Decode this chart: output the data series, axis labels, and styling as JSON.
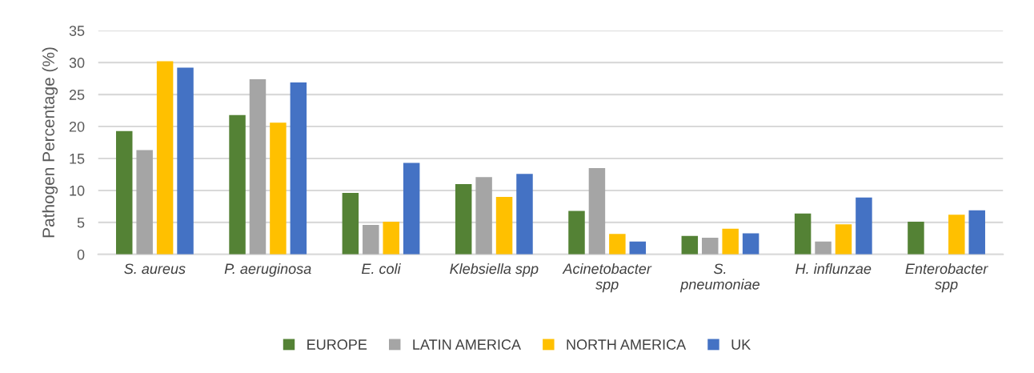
{
  "chart_data": {
    "type": "bar",
    "ylabel": "Pathogen Percentage (%)",
    "categories": [
      "S. aureus",
      "P. aeruginosa",
      "E. coli",
      "Klebsiella spp",
      "Acinetobacter\nspp",
      "S.\npneumoniae",
      "H. influnzae",
      "Enterobacter\nspp"
    ],
    "series": [
      {
        "name": "EUROPE",
        "color": "#548235",
        "values": [
          19.3,
          21.8,
          9.6,
          11.0,
          6.8,
          2.9,
          6.4,
          5.1
        ]
      },
      {
        "name": "LATIN AMERICA",
        "color": "#a5a5a5",
        "values": [
          16.3,
          27.4,
          4.6,
          12.1,
          13.5,
          2.6,
          2.0,
          null
        ]
      },
      {
        "name": "NORTH AMERICA",
        "color": "#ffc000",
        "values": [
          30.2,
          20.6,
          5.1,
          9.0,
          3.2,
          4.0,
          4.7,
          6.2
        ]
      },
      {
        "name": "UK",
        "color": "#4472c4",
        "values": [
          29.2,
          26.9,
          14.3,
          12.6,
          2.0,
          3.3,
          8.9,
          6.9
        ]
      }
    ],
    "ylim": [
      0,
      35
    ],
    "yticks": [
      0,
      5,
      10,
      15,
      20,
      25,
      30,
      35
    ],
    "grid": "y",
    "legend": "bottom"
  }
}
